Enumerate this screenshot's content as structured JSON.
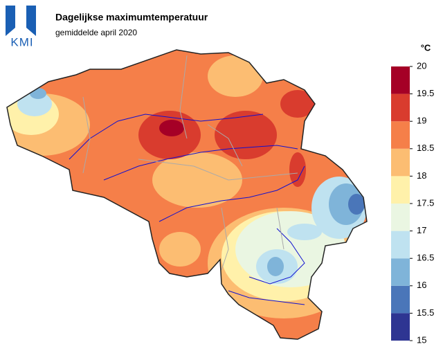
{
  "logo": "KMI",
  "title": "Dagelijkse maximumtemperatuur",
  "subtitle": "gemiddelde april 2020",
  "legend": {
    "unit": "°C",
    "ticks": [
      15,
      15.5,
      16,
      16.5,
      17,
      17.5,
      18,
      18.5,
      19,
      19.5,
      20
    ],
    "colors": [
      "#2e3592",
      "#4a76b9",
      "#7fb4d9",
      "#bfe2f0",
      "#eaf6e2",
      "#fff1aa",
      "#fcbd72",
      "#f57f49",
      "#d93c2e",
      "#a50026"
    ]
  }
}
